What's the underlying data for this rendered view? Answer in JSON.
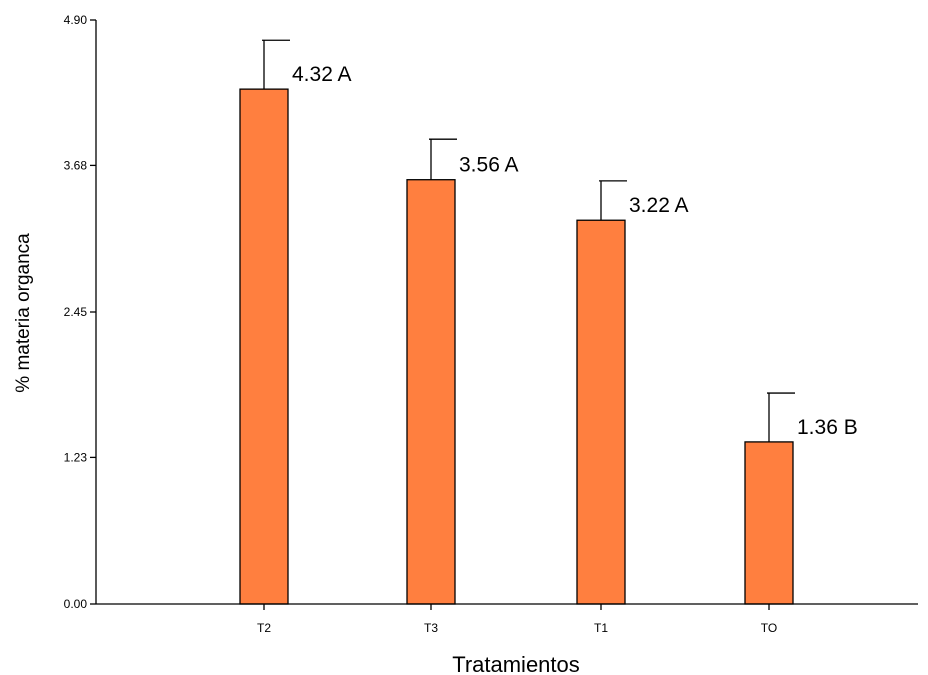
{
  "chart_data": {
    "type": "bar",
    "title": "",
    "xlabel": "Tratamientos",
    "ylabel": "% materia organca",
    "ylim": [
      0,
      4.9
    ],
    "yticks": [
      0.0,
      1.23,
      2.45,
      3.68,
      4.9
    ],
    "ytick_labels": [
      "0.00",
      "1.23",
      "2.45",
      "3.68",
      "4.90"
    ],
    "categories": [
      "T2",
      "T3",
      "T1",
      "TO"
    ],
    "values": [
      4.32,
      3.56,
      3.22,
      1.36
    ],
    "error_upper": [
      4.73,
      3.9,
      3.55,
      1.77
    ],
    "labels": [
      "4.32 A",
      "3.56 A",
      "3.22 A",
      "1.36 B"
    ],
    "grid": false,
    "legend": "none",
    "bar_color": "#ff7f3f",
    "edge_color": "#000000"
  }
}
